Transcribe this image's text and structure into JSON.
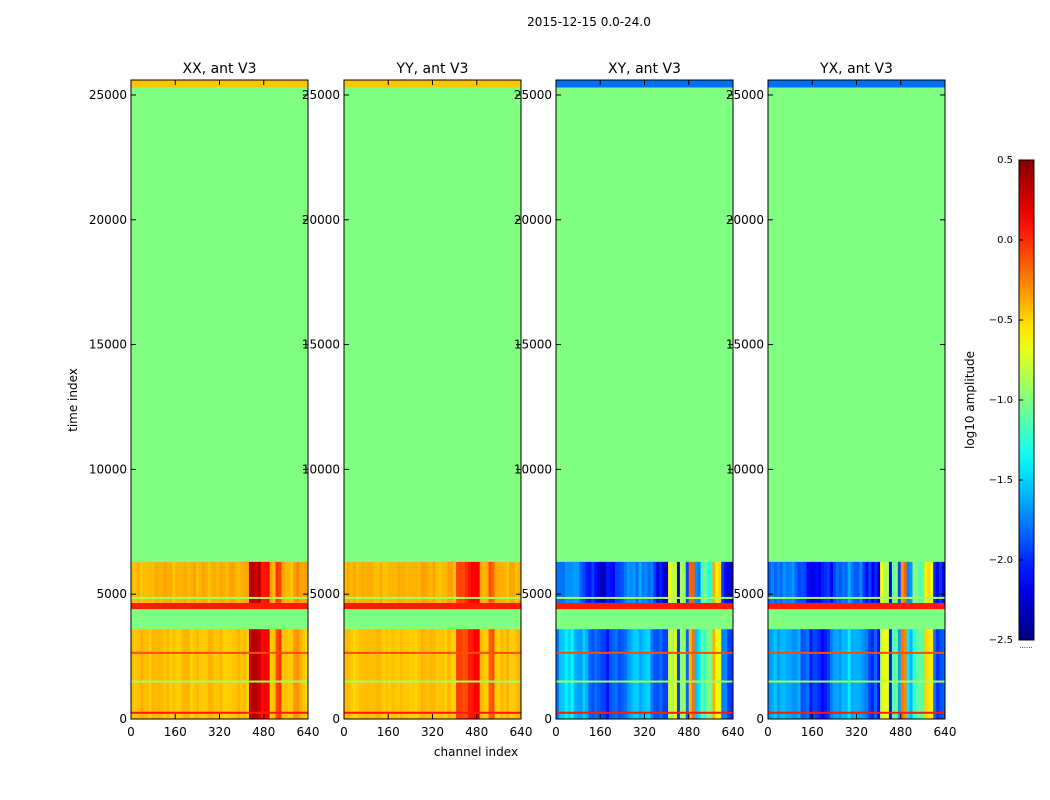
{
  "chart_data": {
    "type": "heatmap",
    "title": "2015-12-15 0.0-24.0",
    "xlabel": "channel index",
    "ylabel": "time index",
    "xlim": [
      0,
      640
    ],
    "ylim": [
      0,
      25600
    ],
    "xticks": [
      "0",
      "160",
      "320",
      "480",
      "640"
    ],
    "yticks": [
      "0",
      "5000",
      "10000",
      "15000",
      "20000",
      "25000"
    ],
    "colormap": "jet",
    "colorbar": {
      "label": "log10 amplitude",
      "range": [
        -2.5,
        0.5
      ],
      "ticks": [
        "0.5",
        "0.0",
        "−0.5",
        "−1.0",
        "−1.5",
        "−2.0",
        "−2.5"
      ],
      "tick_values": [
        0.5,
        0.0,
        -0.5,
        -1.0,
        -1.5,
        -2.0,
        -2.5
      ],
      "below_label": "......"
    },
    "panels": [
      {
        "name": "XX, ant V3",
        "kind": "auto",
        "fill_value": -1.0,
        "segments": [
          {
            "t0": 0,
            "t1": 3600,
            "value": -0.45
          },
          {
            "t0": 3600,
            "t1": 4400,
            "value": -1.0
          },
          {
            "t0": 4400,
            "t1": 4650,
            "value": 0.05
          },
          {
            "t0": 4650,
            "t1": 6300,
            "value": -0.4
          },
          {
            "t0": 6300,
            "t1": 25300,
            "value": -1.0
          },
          {
            "t0": 25300,
            "t1": 25600,
            "value": -0.45
          }
        ],
        "hot_channels": [
          {
            "c0": 430,
            "c1": 470,
            "value": 0.3
          },
          {
            "c0": 470,
            "c1": 500,
            "value": 0.1
          },
          {
            "c0": 520,
            "c1": 545,
            "value": -0.05
          },
          {
            "c0": 590,
            "c1": 610,
            "value": -0.3
          }
        ],
        "lines": [
          {
            "t": 250,
            "value": 0.05
          },
          {
            "t": 1500,
            "value": -0.9
          },
          {
            "t": 2650,
            "value": -0.1
          },
          {
            "t": 4850,
            "value": -0.9
          }
        ]
      },
      {
        "name": "YY, ant V3",
        "kind": "auto",
        "fill_value": -1.0,
        "segments": [
          {
            "t0": 0,
            "t1": 3600,
            "value": -0.45
          },
          {
            "t0": 3600,
            "t1": 4400,
            "value": -1.0
          },
          {
            "t0": 4400,
            "t1": 4650,
            "value": 0.05
          },
          {
            "t0": 4650,
            "t1": 6300,
            "value": -0.4
          },
          {
            "t0": 6300,
            "t1": 25300,
            "value": -1.0
          },
          {
            "t0": 25300,
            "t1": 25600,
            "value": -0.45
          }
        ],
        "hot_channels": [
          {
            "c0": 410,
            "c1": 450,
            "value": -0.05
          },
          {
            "c0": 450,
            "c1": 490,
            "value": 0.1
          },
          {
            "c0": 520,
            "c1": 545,
            "value": -0.15
          }
        ],
        "lines": [
          {
            "t": 250,
            "value": 0.05
          },
          {
            "t": 1500,
            "value": -0.9
          },
          {
            "t": 2650,
            "value": -0.1
          },
          {
            "t": 4850,
            "value": -0.9
          }
        ]
      },
      {
        "name": "XY, ant V3",
        "kind": "cross",
        "fill_value": -1.0,
        "segments": [
          {
            "t0": 0,
            "t1": 3600,
            "value": -1.75
          },
          {
            "t0": 3600,
            "t1": 4400,
            "value": -1.0
          },
          {
            "t0": 4400,
            "t1": 4650,
            "value": 0.05
          },
          {
            "t0": 4650,
            "t1": 6300,
            "value": -1.95
          },
          {
            "t0": 6300,
            "t1": 25300,
            "value": -1.0
          },
          {
            "t0": 25300,
            "t1": 25600,
            "value": -1.8
          }
        ],
        "hot_channels": [
          {
            "c0": 410,
            "c1": 440,
            "value": -0.55
          },
          {
            "c0": 445,
            "c1": 470,
            "value": -0.85
          },
          {
            "c0": 475,
            "c1": 505,
            "value": -0.35
          },
          {
            "c0": 520,
            "c1": 560,
            "value": -1.35
          },
          {
            "c0": 565,
            "c1": 600,
            "value": -0.65
          }
        ],
        "lines": [
          {
            "t": 250,
            "value": 0.05
          },
          {
            "t": 1500,
            "value": -0.9
          },
          {
            "t": 2650,
            "value": -0.1
          },
          {
            "t": 4850,
            "value": -0.9
          }
        ]
      },
      {
        "name": "YX, ant V3",
        "kind": "cross",
        "fill_value": -1.0,
        "segments": [
          {
            "t0": 0,
            "t1": 3600,
            "value": -1.75
          },
          {
            "t0": 3600,
            "t1": 4400,
            "value": -1.0
          },
          {
            "t0": 4400,
            "t1": 4650,
            "value": 0.05
          },
          {
            "t0": 4650,
            "t1": 6300,
            "value": -1.95
          },
          {
            "t0": 6300,
            "t1": 25300,
            "value": -1.0
          },
          {
            "t0": 25300,
            "t1": 25600,
            "value": -1.8
          }
        ],
        "hot_channels": [
          {
            "c0": 410,
            "c1": 440,
            "value": -0.55
          },
          {
            "c0": 445,
            "c1": 470,
            "value": -0.85
          },
          {
            "c0": 475,
            "c1": 505,
            "value": -0.35
          },
          {
            "c0": 520,
            "c1": 560,
            "value": -1.35
          },
          {
            "c0": 565,
            "c1": 600,
            "value": -0.65
          }
        ],
        "lines": [
          {
            "t": 250,
            "value": 0.05
          },
          {
            "t": 1500,
            "value": -0.9
          },
          {
            "t": 2650,
            "value": -0.1
          },
          {
            "t": 4850,
            "value": -0.9
          }
        ]
      }
    ]
  }
}
